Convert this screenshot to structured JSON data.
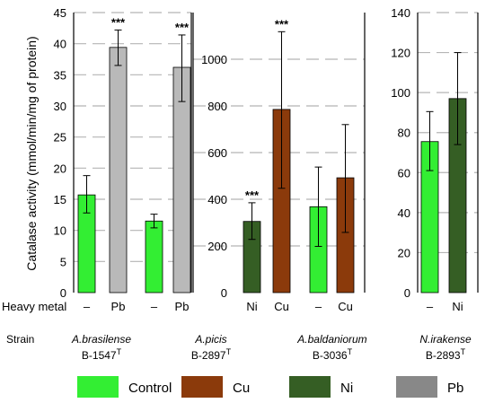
{
  "chart_data": {
    "type": "bar",
    "ylabel": "Catalase activity (mmol/min/mg of protein)",
    "row_labels": {
      "heavy_metal": "Heavy metal",
      "strain": "Strain"
    },
    "colors": {
      "Control": "#33ee33",
      "Cu": "#8b3a0b",
      "Ni": "#355e24",
      "Pb": "#b9b9b9"
    },
    "legend": [
      {
        "name": "Control",
        "color": "#33ee33"
      },
      {
        "name": "Cu",
        "color": "#8b3a0b"
      },
      {
        "name": "Ni",
        "color": "#355e24"
      },
      {
        "name": "Pb",
        "color": "#888888"
      }
    ],
    "panels": [
      {
        "ylim": [
          0,
          45
        ],
        "ticks": [
          0,
          5,
          10,
          15,
          20,
          25,
          30,
          35,
          40,
          45
        ],
        "groups": [
          {
            "strain": "A.brasilense",
            "strain_italic": true,
            "code": "B-1547",
            "sup": "T",
            "bars": [
              {
                "metal": "–",
                "color_key": "Control",
                "value": 15.7,
                "err": [
                  12.8,
                  18.8
                ],
                "sig": ""
              },
              {
                "metal": "Pb",
                "color_key": "Pb",
                "value": 39.4,
                "err": [
                  36.5,
                  42.2
                ],
                "sig": "***"
              }
            ]
          },
          {
            "strain": "",
            "strain_italic": false,
            "code": "",
            "sup": "",
            "bars": [
              {
                "metal": "–",
                "color_key": "Control",
                "value": 11.5,
                "err": [
                  10.4,
                  12.6
                ],
                "sig": ""
              },
              {
                "metal": "Pb",
                "color_key": "Pb",
                "value": 36.2,
                "err": [
                  30.7,
                  41.4
                ],
                "sig": "***"
              }
            ]
          }
        ]
      },
      {
        "ylim": [
          0,
          1200
        ],
        "ticks": [
          0,
          200,
          400,
          600,
          800,
          1000
        ],
        "groups": [
          {
            "strain": "",
            "strain_italic": false,
            "code": "",
            "sup": "",
            "bars": [
              {
                "metal": "Ni",
                "color_key": "Ni",
                "value": 305,
                "err": [
                  228,
                  385
                ],
                "sig": "***"
              },
              {
                "metal": "Cu",
                "color_key": "Cu",
                "value": 785,
                "err": [
                  447,
                  1118
                ],
                "sig": "***"
              }
            ]
          },
          {
            "strain": "A.baldaniorum",
            "strain_italic": true,
            "code": "B-3036",
            "sup": "T",
            "bars": [
              {
                "metal": "–",
                "color_key": "Control",
                "value": 368,
                "err": [
                  198,
                  538
                ],
                "sig": ""
              },
              {
                "metal": "Cu",
                "color_key": "Cu",
                "value": 492,
                "err": [
                  258,
                  720
                ],
                "sig": ""
              }
            ]
          }
        ]
      },
      {
        "ylim": [
          0,
          140
        ],
        "ticks": [
          0,
          20,
          40,
          60,
          80,
          100,
          120,
          140
        ],
        "groups": [
          {
            "strain": "N.irakense",
            "strain_italic": true,
            "code": "B-2893",
            "sup": "T",
            "bars": [
              {
                "metal": "–",
                "color_key": "Control",
                "value": 75.5,
                "err": [
                  61,
                  90.5
                ],
                "sig": ""
              },
              {
                "metal": "Ni",
                "color_key": "Ni",
                "value": 97,
                "err": [
                  74,
                  120
                ],
                "sig": ""
              }
            ]
          }
        ]
      }
    ],
    "shared_strain": {
      "strain": "A.picis",
      "strain_italic": true,
      "code": "B-2897",
      "sup": "T"
    }
  }
}
